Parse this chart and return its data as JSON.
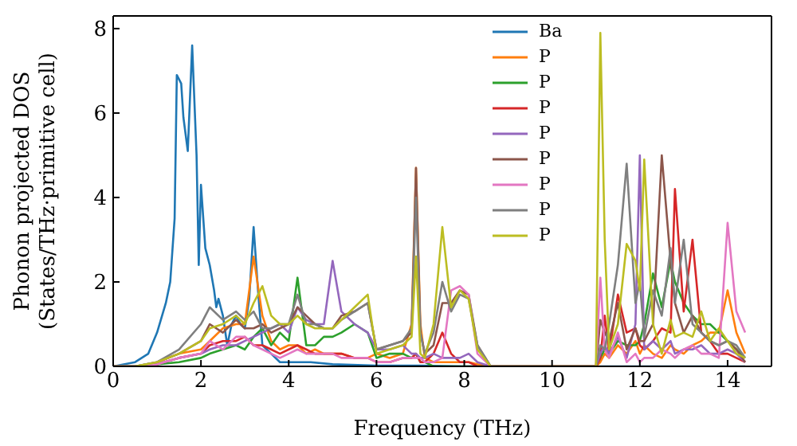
{
  "chart_data": {
    "type": "line",
    "xlabel": "Frequency (THz)",
    "ylabel": "Phonon projected DOS\n(States/THz·primitive cell)",
    "xlim": [
      0,
      15
    ],
    "xticks": [
      0,
      2,
      4,
      6,
      8,
      10,
      12,
      14
    ],
    "ylim": [
      0,
      8.3
    ],
    "yticks": [
      0,
      2,
      4,
      6,
      8
    ],
    "legend": "top",
    "marker": "none",
    "line_style": "solid",
    "x": [
      0,
      0.5,
      1,
      1.5,
      2,
      2.2,
      2.5,
      2.8,
      3,
      3.2,
      3.4,
      3.6,
      3.8,
      4,
      4.2,
      4.4,
      4.6,
      4.8,
      5,
      5.2,
      5.5,
      5.8,
      6,
      6.3,
      6.6,
      6.8,
      6.9,
      7,
      7.1,
      7.3,
      7.5,
      7.7,
      7.9,
      8.1,
      8.3,
      8.6,
      9,
      10.5,
      11,
      11.1,
      11.2,
      11.3,
      11.5,
      11.7,
      11.9,
      12,
      12.1,
      12.3,
      12.5,
      12.7,
      12.8,
      13,
      13.2,
      13.4,
      13.6,
      13.8,
      14,
      14.2,
      14.4
    ],
    "series": [
      {
        "name": "Ba",
        "color": "#1f77b4",
        "x": [
          0,
          0.5,
          0.8,
          1,
          1.2,
          1.3,
          1.4,
          1.45,
          1.55,
          1.6,
          1.7,
          1.8,
          1.9,
          1.95,
          2,
          2.1,
          2.2,
          2.3,
          2.35,
          2.4,
          2.5,
          2.6,
          2.7,
          2.8,
          2.9,
          3,
          3.1,
          3.2,
          3.3,
          3.4,
          3.6,
          3.8,
          4,
          4.5,
          5,
          6,
          7,
          8,
          14.4
        ],
        "values": [
          0,
          0.1,
          0.3,
          0.8,
          1.5,
          2,
          3.5,
          6.9,
          6.7,
          5.9,
          5.1,
          7.6,
          5,
          2.4,
          4.3,
          2.8,
          2.4,
          1.8,
          1.4,
          1.6,
          1.2,
          0.5,
          1,
          1.2,
          1,
          0.9,
          1.6,
          3.3,
          1.8,
          0.5,
          0.3,
          0.1,
          0.1,
          0.1,
          0.05,
          0.02,
          0.02,
          0,
          0
        ]
      },
      {
        "name": "P",
        "color": "#ff7f0e",
        "values": [
          null,
          null,
          0.1,
          0.3,
          0.4,
          0.6,
          0.9,
          1,
          1,
          2.6,
          1.2,
          0.6,
          0.4,
          0.5,
          0.5,
          0.3,
          0.4,
          0.3,
          0.3,
          0.3,
          0.2,
          0.2,
          0.3,
          0.2,
          0.3,
          1,
          4.7,
          1,
          0.2,
          0.1,
          0.1,
          0.1,
          0.1,
          0.1,
          0.05,
          0,
          0,
          0,
          0,
          0.1,
          0.3,
          0.2,
          0.5,
          0.3,
          0.6,
          0.3,
          0.5,
          0.3,
          0.2,
          0.5,
          0.4,
          0.3,
          0.5,
          0.6,
          0.8,
          0.8,
          1.8,
          0.8,
          0.3
        ]
      },
      {
        "name": "P",
        "color": "#2ca02c",
        "values": [
          0,
          0,
          0.05,
          0.1,
          0.2,
          0.3,
          0.4,
          0.5,
          0.4,
          0.7,
          0.9,
          0.5,
          0.8,
          0.6,
          2.1,
          0.5,
          0.5,
          0.7,
          0.7,
          0.8,
          1,
          0.8,
          0.2,
          0.3,
          0.3,
          0.2,
          0.3,
          0.1,
          0.1,
          0,
          0,
          0,
          0,
          0,
          0,
          0,
          0,
          0,
          0,
          0.2,
          0.4,
          0.3,
          0.6,
          0.5,
          0.5,
          0.6,
          1,
          2.2,
          1.4,
          2.5,
          2,
          1.5,
          1.2,
          1,
          1,
          0.8,
          0.6,
          0.4,
          0.2
        ]
      },
      {
        "name": "P",
        "color": "#d62728",
        "values": [
          0,
          0,
          0.05,
          0.2,
          0.3,
          0.5,
          0.6,
          0.6,
          0.7,
          0.5,
          0.5,
          0.4,
          0.3,
          0.4,
          0.5,
          0.4,
          0.3,
          0.3,
          0.3,
          0.3,
          0.2,
          0.2,
          0.1,
          0.1,
          0.2,
          0.2,
          0.3,
          0.1,
          0.1,
          0.3,
          0.8,
          0.3,
          0.1,
          0.1,
          0,
          0,
          0,
          0,
          0,
          0.2,
          1.2,
          0.3,
          1.7,
          0.8,
          0.9,
          0.5,
          0.4,
          0.6,
          0.9,
          0.8,
          4.2,
          1.3,
          3,
          0.8,
          0.6,
          0.3,
          0.3,
          0.2,
          0.1
        ]
      },
      {
        "name": "P",
        "color": "#9467bd",
        "values": [
          0,
          0,
          0.05,
          0.2,
          0.3,
          0.4,
          0.5,
          0.5,
          0.6,
          0.7,
          0.8,
          0.9,
          1,
          0.8,
          1.4,
          1.1,
          1,
          1,
          2.5,
          1.3,
          1,
          0.8,
          0.4,
          0.4,
          0.5,
          0.3,
          0.3,
          0.2,
          0.2,
          0.3,
          0.2,
          0.2,
          0.2,
          0.3,
          0.1,
          0,
          0,
          0,
          0,
          0.3,
          0.5,
          0.3,
          0.7,
          0.2,
          1,
          5,
          0.4,
          0.6,
          0.4,
          0.6,
          0.3,
          0.4,
          0.4,
          0.5,
          0.3,
          0.3,
          0.4,
          0.3,
          0.1
        ]
      },
      {
        "name": "P",
        "color": "#8c564b",
        "values": [
          0,
          0,
          0.1,
          0.3,
          0.6,
          1,
          0.8,
          1.1,
          0.9,
          0.9,
          1,
          0.8,
          0.9,
          1,
          1.4,
          1.2,
          1,
          0.9,
          0.9,
          1.2,
          1.3,
          1.5,
          0.4,
          0.5,
          0.6,
          0.8,
          4.7,
          0.8,
          0.3,
          0.5,
          1.5,
          1.5,
          1.8,
          1.7,
          0.5,
          0,
          0,
          0,
          0,
          1.1,
          0.8,
          0.6,
          1.5,
          0.4,
          0.9,
          0.6,
          0.6,
          1,
          5,
          2.5,
          1.5,
          0.8,
          1.2,
          0.8,
          0.6,
          0.5,
          0.6,
          0.4,
          0.1
        ]
      },
      {
        "name": "P",
        "color": "#e377c2",
        "values": [
          0,
          0,
          0.05,
          0.2,
          0.3,
          0.6,
          0.4,
          0.7,
          0.7,
          0.5,
          0.4,
          0.3,
          0.2,
          0.3,
          0.4,
          0.3,
          0.3,
          0.3,
          0.3,
          0.2,
          0.2,
          0.2,
          0.1,
          0.1,
          0.2,
          0.2,
          0.2,
          0.2,
          0.1,
          0.1,
          0.2,
          1.8,
          1.9,
          1.7,
          0.3,
          0,
          0,
          0,
          0,
          2.1,
          0.4,
          0.2,
          0.8,
          0.1,
          0.3,
          0.1,
          0.2,
          0.2,
          0.4,
          0.3,
          0.2,
          0.4,
          0.5,
          0.3,
          0.3,
          0.2,
          3.4,
          1.3,
          0.8
        ]
      },
      {
        "name": "P",
        "color": "#7f7f7f",
        "values": [
          0,
          0,
          0.1,
          0.4,
          1,
          1.4,
          1.1,
          1.3,
          1.1,
          1.3,
          0.9,
          0.9,
          1,
          1,
          1.7,
          1,
          1,
          0.9,
          0.9,
          1.1,
          1.3,
          1.5,
          0.4,
          0.5,
          0.6,
          0.9,
          4,
          0.8,
          0.3,
          0.8,
          2,
          1.3,
          1.7,
          1.6,
          0.5,
          0,
          0,
          0,
          0,
          0.5,
          0.4,
          1,
          2.4,
          4.8,
          1.5,
          2,
          0.7,
          1.8,
          1.2,
          2.8,
          1.5,
          3,
          1,
          0.8,
          0.6,
          0.5,
          0.6,
          0.5,
          0.2
        ]
      },
      {
        "name": "P",
        "color": "#bcbd22",
        "values": [
          0,
          0,
          0.1,
          0.3,
          0.6,
          0.9,
          1,
          1.2,
          1,
          1.5,
          1.9,
          1.2,
          1,
          1,
          1.2,
          1,
          0.9,
          0.9,
          0.9,
          1.1,
          1.4,
          1.7,
          0.3,
          0.4,
          0.5,
          0.7,
          2.6,
          0.3,
          0.2,
          1,
          3.3,
          1.4,
          1.8,
          1.6,
          0.4,
          0,
          0,
          0,
          0,
          7.9,
          3,
          0.4,
          1,
          2.9,
          2.5,
          1.8,
          4.9,
          1,
          0.3,
          1.1,
          0.7,
          0.8,
          0.7,
          1.3,
          0.6,
          0.9,
          0.6,
          0.3,
          0.2
        ]
      }
    ]
  }
}
